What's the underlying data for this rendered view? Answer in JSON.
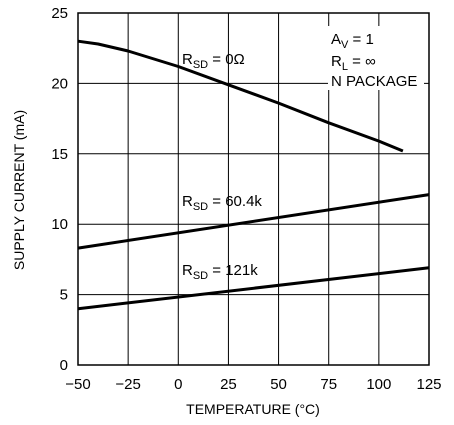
{
  "chart_data": {
    "type": "line",
    "xlabel": "TEMPERATURE (°C)",
    "ylabel": "SUPPLY CURRENT (mA)",
    "xlim": [
      -50,
      125
    ],
    "ylim": [
      0,
      25
    ],
    "xticks": [
      "−50",
      "−25",
      "0",
      "25",
      "50",
      "75",
      "100",
      "125"
    ],
    "yticks": [
      "0",
      "5",
      "10",
      "15",
      "20",
      "25"
    ],
    "grid": true,
    "series": [
      {
        "name_main": "R",
        "name_sub": "SD",
        "name_rest": " = 0Ω",
        "x": [
          -50,
          -40,
          -25,
          0,
          25,
          50,
          75,
          100,
          112
        ],
        "y": [
          23.0,
          22.8,
          22.3,
          21.2,
          19.9,
          18.6,
          17.2,
          15.9,
          15.2
        ]
      },
      {
        "name_main": "R",
        "name_sub": "SD",
        "name_rest": " = 60.4k",
        "x": [
          -50,
          125
        ],
        "y": [
          8.3,
          12.1
        ]
      },
      {
        "name_main": "R",
        "name_sub": "SD",
        "name_rest": " = 121k",
        "x": [
          -50,
          125
        ],
        "y": [
          4.0,
          6.9
        ]
      }
    ],
    "conditions": {
      "av_main": "A",
      "av_sub": "V",
      "av_rest": " = 1",
      "rl_main": "R",
      "rl_sub": "L",
      "rl_rest": " = ∞",
      "package": "N PACKAGE"
    }
  }
}
